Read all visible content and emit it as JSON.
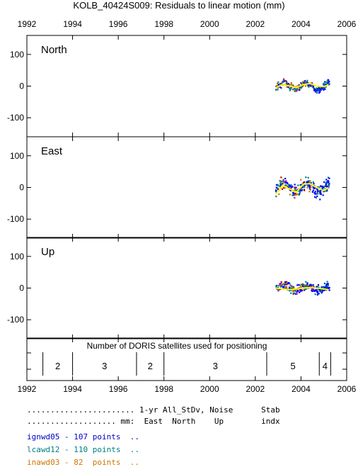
{
  "title": "KOLB_40424S009: Residuals to linear motion (mm)",
  "x_ticks": [
    "1992",
    "1994",
    "1996",
    "1998",
    "2000",
    "2002",
    "2004",
    "2006"
  ],
  "y_ticks": [
    "100",
    "0",
    "-100"
  ],
  "segment_panel": {
    "title": "Number of DORIS satellites used for positioning",
    "segments": [
      {
        "label": "2",
        "x_start": 1992.7,
        "x_end": 1994.0
      },
      {
        "label": "3",
        "x_start": 1994.0,
        "x_end": 1996.8
      },
      {
        "label": "2",
        "x_start": 1996.8,
        "x_end": 1998.0
      },
      {
        "label": "3",
        "x_start": 1998.0,
        "x_end": 2002.5
      },
      {
        "label": "5",
        "x_start": 2002.5,
        "x_end": 2004.8
      },
      {
        "label": "4",
        "x_start": 2004.8,
        "x_end": 2005.3
      }
    ]
  },
  "legend": {
    "header1": "....................... 1-yr All_StDv, Noise      Stab",
    "header2": "................... mm:  East  North    Up        indx",
    "rows": [
      {
        "text": "ignwd05 - 107 points  ..",
        "color": "#0000cc"
      },
      {
        "text": "lcawd12 - 110 points  ..",
        "color": "#008080"
      },
      {
        "text": "inawd03 - 82  points  ..",
        "color": "#cc7700"
      }
    ]
  },
  "colors": {
    "series_ign": "#0000ff",
    "series_lca": "#008080",
    "series_ina": "#cc7700",
    "series_extra": "#cc00cc",
    "series_extra2": "#cc0000",
    "smooth": "#ffff00"
  },
  "chart_data": {
    "type": "scatter",
    "xlim": [
      1992,
      2006
    ],
    "ylim": [
      -160,
      160
    ],
    "panels": [
      {
        "name": "North",
        "amplitude": 10,
        "scatter": 8,
        "smooth": [
          [
            2002.9,
            -5
          ],
          [
            2003.2,
            5
          ],
          [
            2003.5,
            0
          ],
          [
            2003.8,
            -5
          ],
          [
            2004.1,
            5
          ],
          [
            2004.4,
            8
          ],
          [
            2004.7,
            0
          ],
          [
            2005.0,
            -2
          ],
          [
            2005.2,
            5
          ]
        ]
      },
      {
        "name": "East",
        "amplitude": 15,
        "scatter": 14,
        "smooth": [
          [
            2002.9,
            -20
          ],
          [
            2003.2,
            5
          ],
          [
            2003.5,
            -5
          ],
          [
            2003.8,
            -15
          ],
          [
            2004.1,
            10
          ],
          [
            2004.4,
            12
          ],
          [
            2004.7,
            0
          ],
          [
            2005.0,
            -10
          ],
          [
            2005.2,
            0
          ]
        ]
      },
      {
        "name": "Up",
        "amplitude": 6,
        "scatter": 10,
        "smooth": [
          [
            2002.9,
            0
          ],
          [
            2003.2,
            -3
          ],
          [
            2003.5,
            -5
          ],
          [
            2003.8,
            -3
          ],
          [
            2004.1,
            0
          ],
          [
            2004.4,
            2
          ],
          [
            2004.7,
            0
          ],
          [
            2005.0,
            -3
          ],
          [
            2005.2,
            -5
          ]
        ]
      }
    ],
    "data_span": [
      2002.9,
      2005.25
    ]
  }
}
